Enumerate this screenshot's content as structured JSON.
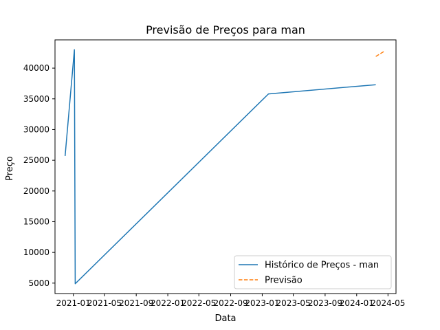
{
  "chart_data": {
    "type": "line",
    "title": "Previsão de Preços para man",
    "xlabel": "Data",
    "ylabel": "Preço",
    "x_axis_type": "date",
    "xlim": [
      "2020-10-22",
      "2024-06-01"
    ],
    "ylim": [
      3300,
      44600
    ],
    "x_ticks": [
      "2021-01",
      "2021-05",
      "2021-09",
      "2022-01",
      "2022-05",
      "2022-09",
      "2023-01",
      "2023-05",
      "2023-09",
      "2024-01",
      "2024-05"
    ],
    "x_tick_dates": [
      "2021-01-01",
      "2021-05-01",
      "2021-09-01",
      "2022-01-01",
      "2022-05-01",
      "2022-09-01",
      "2023-01-01",
      "2023-05-01",
      "2023-09-01",
      "2024-01-01",
      "2024-05-01"
    ],
    "y_ticks": [
      5000,
      10000,
      15000,
      20000,
      25000,
      30000,
      35000,
      40000
    ],
    "y_tick_labels": [
      "5000",
      "10000",
      "15000",
      "20000",
      "25000",
      "30000",
      "35000",
      "40000"
    ],
    "grid": false,
    "legend_position": "lower right",
    "series": [
      {
        "name": "Histórico de Preços - man",
        "color": "#1f77b4",
        "dash": "solid",
        "x": [
          "2020-11-30",
          "2021-01-05",
          "2021-01-08",
          "2023-01-25",
          "2024-03-15"
        ],
        "y": [
          25700,
          43000,
          4900,
          35800,
          37300
        ]
      },
      {
        "name": "Previsão",
        "color": "#ff7f0e",
        "dash": "dashed",
        "x": [
          "2024-03-15",
          "2024-04-15"
        ],
        "y": [
          41900,
          42700
        ]
      }
    ]
  }
}
